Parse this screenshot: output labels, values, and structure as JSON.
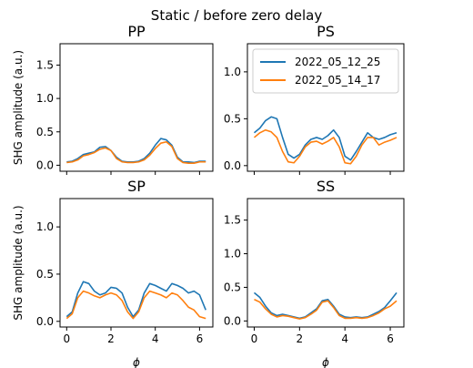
{
  "figure": {
    "suptitle": "Static / before zero delay"
  },
  "colors": {
    "series_1": "#1f77b4",
    "series_2": "#ff7f0e",
    "axes": "#000000",
    "background": "#ffffff"
  },
  "chart_data": [
    {
      "type": "line",
      "panel": "PP",
      "title": "PP",
      "xlabel": "",
      "ylabel": "SHG amplitude (a.u.)",
      "xlim": [
        -0.3,
        6.6
      ],
      "ylim": [
        -0.09,
        1.82
      ],
      "xticks": [
        0,
        2,
        4,
        6
      ],
      "yticks": [
        0.0,
        0.5,
        1.0,
        1.5
      ],
      "ytick_labels": [
        "0.0",
        "0.5",
        "1.0",
        "1.5"
      ],
      "xtick_labels": [],
      "legend": null,
      "x": [
        0.0,
        0.25,
        0.5,
        0.75,
        1.0,
        1.25,
        1.5,
        1.75,
        2.0,
        2.25,
        2.5,
        2.75,
        3.0,
        3.25,
        3.5,
        3.75,
        4.0,
        4.25,
        4.5,
        4.75,
        5.0,
        5.25,
        5.5,
        5.75,
        6.0,
        6.28
      ],
      "series": [
        {
          "name": "2022_05_12_25",
          "values": [
            0.05,
            0.06,
            0.1,
            0.16,
            0.18,
            0.2,
            0.27,
            0.28,
            0.22,
            0.12,
            0.06,
            0.05,
            0.05,
            0.06,
            0.1,
            0.18,
            0.3,
            0.4,
            0.38,
            0.3,
            0.12,
            0.05,
            0.05,
            0.04,
            0.06,
            0.06
          ]
        },
        {
          "name": "2022_05_14_17",
          "values": [
            0.04,
            0.05,
            0.08,
            0.14,
            0.16,
            0.19,
            0.24,
            0.26,
            0.22,
            0.1,
            0.05,
            0.04,
            0.04,
            0.05,
            0.08,
            0.15,
            0.25,
            0.33,
            0.35,
            0.28,
            0.1,
            0.04,
            0.03,
            0.03,
            0.05,
            0.05
          ]
        }
      ]
    },
    {
      "type": "line",
      "panel": "PS",
      "title": "PS",
      "xlabel": "",
      "ylabel": "",
      "xlim": [
        -0.3,
        6.6
      ],
      "ylim": [
        -0.06,
        1.3
      ],
      "xticks": [
        0,
        2,
        4,
        6
      ],
      "yticks": [
        0.0,
        0.5,
        1.0
      ],
      "ytick_labels": [
        "0.0",
        "0.5",
        "1.0"
      ],
      "xtick_labels": [],
      "legend": {
        "location": "upper-right",
        "entries": [
          "2022_05_12_25",
          "2022_05_14_17"
        ]
      },
      "x": [
        0.0,
        0.25,
        0.5,
        0.75,
        1.0,
        1.25,
        1.5,
        1.75,
        2.0,
        2.25,
        2.5,
        2.75,
        3.0,
        3.25,
        3.5,
        3.75,
        4.0,
        4.25,
        4.5,
        4.75,
        5.0,
        5.25,
        5.5,
        5.75,
        6.0,
        6.28
      ],
      "series": [
        {
          "name": "2022_05_12_25",
          "values": [
            0.35,
            0.4,
            0.48,
            0.52,
            0.5,
            0.3,
            0.12,
            0.08,
            0.12,
            0.22,
            0.28,
            0.3,
            0.28,
            0.32,
            0.38,
            0.3,
            0.1,
            0.06,
            0.15,
            0.25,
            0.35,
            0.3,
            0.28,
            0.3,
            0.33,
            0.35
          ]
        },
        {
          "name": "2022_05_14_17",
          "values": [
            0.3,
            0.35,
            0.38,
            0.36,
            0.3,
            0.15,
            0.04,
            0.03,
            0.1,
            0.2,
            0.25,
            0.26,
            0.23,
            0.26,
            0.3,
            0.2,
            0.03,
            0.02,
            0.1,
            0.22,
            0.3,
            0.3,
            0.22,
            0.25,
            0.27,
            0.3
          ]
        }
      ]
    },
    {
      "type": "line",
      "panel": "SP",
      "title": "SP",
      "xlabel": "ϕ",
      "ylabel": "SHG amplitude (a.u.)",
      "xlim": [
        -0.3,
        6.6
      ],
      "ylim": [
        -0.06,
        1.3
      ],
      "xticks": [
        0,
        2,
        4,
        6
      ],
      "yticks": [
        0.0,
        0.5,
        1.0
      ],
      "ytick_labels": [
        "0.0",
        "0.5",
        "1.0"
      ],
      "xtick_labels": [
        "0",
        "2",
        "4",
        "6"
      ],
      "legend": null,
      "x": [
        0.0,
        0.25,
        0.5,
        0.75,
        1.0,
        1.25,
        1.5,
        1.75,
        2.0,
        2.25,
        2.5,
        2.75,
        3.0,
        3.25,
        3.5,
        3.75,
        4.0,
        4.25,
        4.5,
        4.75,
        5.0,
        5.25,
        5.5,
        5.75,
        6.0,
        6.28
      ],
      "series": [
        {
          "name": "2022_05_12_25",
          "values": [
            0.05,
            0.1,
            0.3,
            0.42,
            0.4,
            0.32,
            0.28,
            0.3,
            0.36,
            0.35,
            0.3,
            0.15,
            0.05,
            0.12,
            0.3,
            0.4,
            0.38,
            0.35,
            0.32,
            0.4,
            0.38,
            0.35,
            0.3,
            0.32,
            0.28,
            0.12
          ]
        },
        {
          "name": "2022_05_14_17",
          "values": [
            0.03,
            0.08,
            0.25,
            0.32,
            0.3,
            0.27,
            0.25,
            0.28,
            0.3,
            0.28,
            0.22,
            0.1,
            0.03,
            0.1,
            0.25,
            0.32,
            0.3,
            0.28,
            0.25,
            0.3,
            0.28,
            0.22,
            0.15,
            0.12,
            0.05,
            0.03
          ]
        }
      ]
    },
    {
      "type": "line",
      "panel": "SS",
      "title": "SS",
      "xlabel": "ϕ",
      "ylabel": "",
      "xlim": [
        -0.3,
        6.6
      ],
      "ylim": [
        -0.09,
        1.82
      ],
      "xticks": [
        0,
        2,
        4,
        6
      ],
      "yticks": [
        0.0,
        0.5,
        1.0,
        1.5
      ],
      "ytick_labels": [
        "0.0",
        "0.5",
        "1.0",
        "1.5"
      ],
      "xtick_labels": [
        "0",
        "2",
        "4",
        "6"
      ],
      "legend": null,
      "x": [
        0.0,
        0.25,
        0.5,
        0.75,
        1.0,
        1.25,
        1.5,
        1.75,
        2.0,
        2.25,
        2.5,
        2.75,
        3.0,
        3.25,
        3.5,
        3.75,
        4.0,
        4.25,
        4.5,
        4.75,
        5.0,
        5.25,
        5.5,
        5.75,
        6.0,
        6.28
      ],
      "series": [
        {
          "name": "2022_05_12_25",
          "values": [
            0.42,
            0.35,
            0.22,
            0.12,
            0.08,
            0.1,
            0.08,
            0.06,
            0.04,
            0.06,
            0.12,
            0.18,
            0.3,
            0.32,
            0.22,
            0.1,
            0.06,
            0.05,
            0.06,
            0.05,
            0.06,
            0.1,
            0.14,
            0.2,
            0.3,
            0.42
          ]
        },
        {
          "name": "2022_05_14_17",
          "values": [
            0.32,
            0.28,
            0.18,
            0.1,
            0.06,
            0.08,
            0.07,
            0.05,
            0.03,
            0.05,
            0.1,
            0.16,
            0.28,
            0.3,
            0.2,
            0.08,
            0.04,
            0.04,
            0.05,
            0.04,
            0.05,
            0.08,
            0.12,
            0.18,
            0.22,
            0.3
          ]
        }
      ]
    }
  ]
}
